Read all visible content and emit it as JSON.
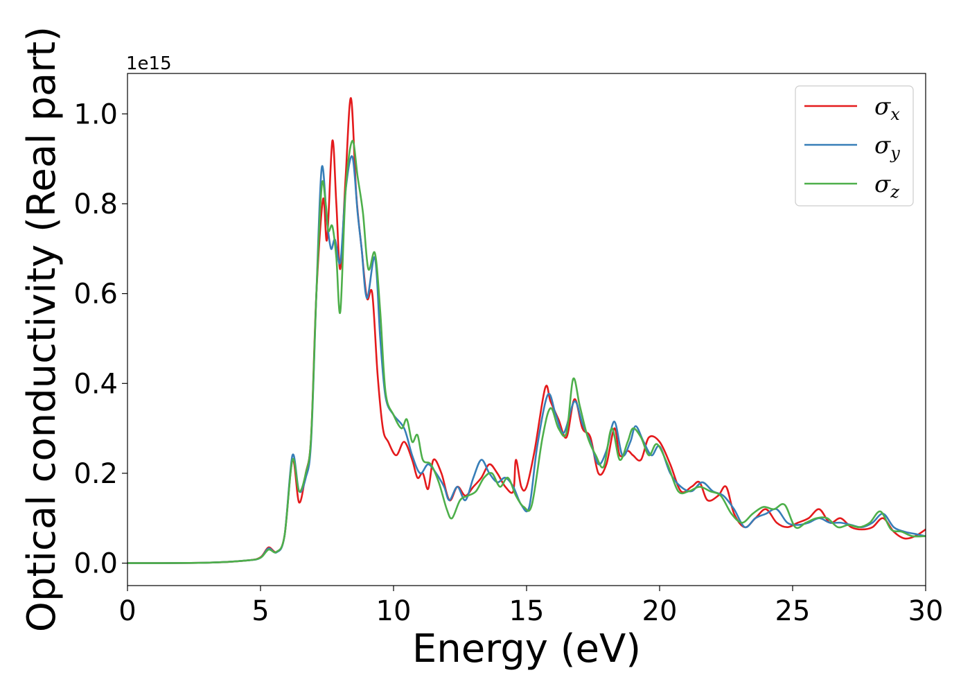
{
  "chart_data": {
    "type": "line",
    "title": "",
    "xlabel": "Energy (eV)",
    "ylabel": "Optical conductivity (Real part)",
    "y_offset_label": "1e15",
    "xlim": [
      0,
      30
    ],
    "ylim": [
      -0.05,
      1.09
    ],
    "x_ticks": [
      0,
      5,
      10,
      15,
      20,
      25,
      30
    ],
    "x_tick_labels": [
      "0",
      "5",
      "10",
      "15",
      "20",
      "25",
      "30"
    ],
    "y_ticks": [
      0.0,
      0.2,
      0.4,
      0.6,
      0.8,
      1.0
    ],
    "y_tick_labels": [
      "0.0",
      "0.2",
      "0.4",
      "0.6",
      "0.8",
      "1.0"
    ],
    "grid": false,
    "legend_position": "top-right",
    "series": [
      {
        "name": "σx",
        "symbol": "σ",
        "subscript": "x",
        "color": "#e41a1c",
        "points": [
          [
            0,
            0
          ],
          [
            3,
            0.001
          ],
          [
            4.5,
            0.006
          ],
          [
            5.0,
            0.013
          ],
          [
            5.3,
            0.035
          ],
          [
            5.6,
            0.025
          ],
          [
            5.9,
            0.06
          ],
          [
            6.2,
            0.23
          ],
          [
            6.45,
            0.135
          ],
          [
            6.7,
            0.2
          ],
          [
            6.9,
            0.28
          ],
          [
            7.1,
            0.6
          ],
          [
            7.35,
            0.81
          ],
          [
            7.5,
            0.72
          ],
          [
            7.7,
            0.94
          ],
          [
            7.85,
            0.8
          ],
          [
            8.0,
            0.655
          ],
          [
            8.2,
            0.86
          ],
          [
            8.4,
            1.035
          ],
          [
            8.6,
            0.82
          ],
          [
            8.8,
            0.7
          ],
          [
            9.0,
            0.59
          ],
          [
            9.2,
            0.6
          ],
          [
            9.4,
            0.42
          ],
          [
            9.6,
            0.3
          ],
          [
            9.8,
            0.27
          ],
          [
            10.1,
            0.24
          ],
          [
            10.4,
            0.27
          ],
          [
            10.7,
            0.23
          ],
          [
            10.9,
            0.19
          ],
          [
            11.1,
            0.2
          ],
          [
            11.3,
            0.165
          ],
          [
            11.5,
            0.23
          ],
          [
            11.8,
            0.2
          ],
          [
            12.1,
            0.14
          ],
          [
            12.4,
            0.17
          ],
          [
            12.7,
            0.15
          ],
          [
            13.0,
            0.17
          ],
          [
            13.3,
            0.19
          ],
          [
            13.6,
            0.22
          ],
          [
            13.9,
            0.2
          ],
          [
            14.2,
            0.17
          ],
          [
            14.5,
            0.16
          ],
          [
            14.6,
            0.23
          ],
          [
            14.8,
            0.17
          ],
          [
            15.0,
            0.17
          ],
          [
            15.3,
            0.25
          ],
          [
            15.7,
            0.39
          ],
          [
            15.9,
            0.36
          ],
          [
            16.2,
            0.32
          ],
          [
            16.5,
            0.28
          ],
          [
            16.8,
            0.365
          ],
          [
            17.1,
            0.3
          ],
          [
            17.4,
            0.28
          ],
          [
            17.7,
            0.2
          ],
          [
            18.0,
            0.22
          ],
          [
            18.3,
            0.3
          ],
          [
            18.5,
            0.24
          ],
          [
            18.8,
            0.25
          ],
          [
            19.0,
            0.24
          ],
          [
            19.3,
            0.23
          ],
          [
            19.6,
            0.28
          ],
          [
            20.0,
            0.27
          ],
          [
            20.4,
            0.22
          ],
          [
            20.8,
            0.16
          ],
          [
            21.2,
            0.17
          ],
          [
            21.5,
            0.18
          ],
          [
            21.8,
            0.14
          ],
          [
            22.2,
            0.15
          ],
          [
            22.5,
            0.17
          ],
          [
            22.8,
            0.11
          ],
          [
            23.2,
            0.08
          ],
          [
            23.6,
            0.1
          ],
          [
            24.0,
            0.12
          ],
          [
            24.4,
            0.09
          ],
          [
            24.8,
            0.08
          ],
          [
            25.2,
            0.09
          ],
          [
            25.6,
            0.1
          ],
          [
            26.0,
            0.12
          ],
          [
            26.4,
            0.09
          ],
          [
            26.8,
            0.1
          ],
          [
            27.2,
            0.08
          ],
          [
            27.6,
            0.075
          ],
          [
            28.0,
            0.08
          ],
          [
            28.4,
            0.1
          ],
          [
            28.8,
            0.07
          ],
          [
            29.2,
            0.055
          ],
          [
            29.6,
            0.06
          ],
          [
            30.0,
            0.075
          ]
        ]
      },
      {
        "name": "σy",
        "symbol": "σ",
        "subscript": "y",
        "color": "#377eb8",
        "points": [
          [
            0,
            0
          ],
          [
            3,
            0.001
          ],
          [
            4.5,
            0.006
          ],
          [
            5.0,
            0.012
          ],
          [
            5.3,
            0.033
          ],
          [
            5.6,
            0.024
          ],
          [
            5.9,
            0.06
          ],
          [
            6.2,
            0.24
          ],
          [
            6.45,
            0.16
          ],
          [
            6.7,
            0.19
          ],
          [
            6.9,
            0.27
          ],
          [
            7.1,
            0.6
          ],
          [
            7.3,
            0.88
          ],
          [
            7.5,
            0.76
          ],
          [
            7.65,
            0.7
          ],
          [
            7.8,
            0.72
          ],
          [
            8.0,
            0.67
          ],
          [
            8.2,
            0.83
          ],
          [
            8.45,
            0.905
          ],
          [
            8.65,
            0.78
          ],
          [
            8.8,
            0.7
          ],
          [
            9.0,
            0.59
          ],
          [
            9.3,
            0.68
          ],
          [
            9.5,
            0.5
          ],
          [
            9.7,
            0.37
          ],
          [
            10.0,
            0.33
          ],
          [
            10.4,
            0.3
          ],
          [
            10.7,
            0.24
          ],
          [
            11.0,
            0.2
          ],
          [
            11.3,
            0.22
          ],
          [
            11.6,
            0.2
          ],
          [
            11.9,
            0.17
          ],
          [
            12.1,
            0.14
          ],
          [
            12.4,
            0.17
          ],
          [
            12.7,
            0.14
          ],
          [
            13.0,
            0.19
          ],
          [
            13.3,
            0.23
          ],
          [
            13.6,
            0.2
          ],
          [
            13.9,
            0.18
          ],
          [
            14.2,
            0.19
          ],
          [
            14.5,
            0.17
          ],
          [
            14.8,
            0.13
          ],
          [
            15.1,
            0.125
          ],
          [
            15.4,
            0.26
          ],
          [
            15.8,
            0.375
          ],
          [
            16.1,
            0.33
          ],
          [
            16.4,
            0.29
          ],
          [
            16.8,
            0.36
          ],
          [
            17.1,
            0.31
          ],
          [
            17.4,
            0.27
          ],
          [
            17.7,
            0.22
          ],
          [
            18.0,
            0.25
          ],
          [
            18.3,
            0.315
          ],
          [
            18.6,
            0.24
          ],
          [
            18.9,
            0.27
          ],
          [
            19.1,
            0.305
          ],
          [
            19.4,
            0.27
          ],
          [
            19.7,
            0.24
          ],
          [
            20.0,
            0.26
          ],
          [
            20.4,
            0.2
          ],
          [
            20.8,
            0.17
          ],
          [
            21.2,
            0.16
          ],
          [
            21.6,
            0.18
          ],
          [
            22.0,
            0.16
          ],
          [
            22.4,
            0.15
          ],
          [
            22.8,
            0.12
          ],
          [
            23.2,
            0.08
          ],
          [
            23.6,
            0.1
          ],
          [
            24.0,
            0.11
          ],
          [
            24.4,
            0.12
          ],
          [
            24.8,
            0.09
          ],
          [
            25.2,
            0.085
          ],
          [
            25.6,
            0.09
          ],
          [
            26.0,
            0.1
          ],
          [
            26.4,
            0.09
          ],
          [
            26.8,
            0.09
          ],
          [
            27.2,
            0.085
          ],
          [
            27.6,
            0.08
          ],
          [
            28.0,
            0.09
          ],
          [
            28.4,
            0.11
          ],
          [
            28.8,
            0.08
          ],
          [
            29.2,
            0.07
          ],
          [
            29.6,
            0.065
          ],
          [
            30.0,
            0.06
          ]
        ]
      },
      {
        "name": "σz",
        "symbol": "σ",
        "subscript": "z",
        "color": "#4daf4a",
        "points": [
          [
            0,
            0
          ],
          [
            3,
            0.001
          ],
          [
            4.5,
            0.006
          ],
          [
            5.0,
            0.012
          ],
          [
            5.3,
            0.03
          ],
          [
            5.6,
            0.025
          ],
          [
            5.9,
            0.06
          ],
          [
            6.2,
            0.23
          ],
          [
            6.45,
            0.16
          ],
          [
            6.7,
            0.2
          ],
          [
            6.9,
            0.28
          ],
          [
            7.1,
            0.6
          ],
          [
            7.3,
            0.84
          ],
          [
            7.45,
            0.8
          ],
          [
            7.55,
            0.74
          ],
          [
            7.7,
            0.75
          ],
          [
            7.85,
            0.68
          ],
          [
            8.0,
            0.56
          ],
          [
            8.2,
            0.83
          ],
          [
            8.45,
            0.94
          ],
          [
            8.65,
            0.86
          ],
          [
            8.85,
            0.78
          ],
          [
            9.05,
            0.655
          ],
          [
            9.3,
            0.69
          ],
          [
            9.5,
            0.56
          ],
          [
            9.7,
            0.38
          ],
          [
            10.0,
            0.33
          ],
          [
            10.3,
            0.3
          ],
          [
            10.5,
            0.32
          ],
          [
            10.7,
            0.27
          ],
          [
            10.9,
            0.285
          ],
          [
            11.1,
            0.23
          ],
          [
            11.4,
            0.22
          ],
          [
            11.7,
            0.18
          ],
          [
            12.0,
            0.12
          ],
          [
            12.2,
            0.1
          ],
          [
            12.5,
            0.14
          ],
          [
            12.8,
            0.15
          ],
          [
            13.1,
            0.16
          ],
          [
            13.4,
            0.19
          ],
          [
            13.7,
            0.2
          ],
          [
            14.0,
            0.17
          ],
          [
            14.3,
            0.19
          ],
          [
            14.6,
            0.15
          ],
          [
            14.9,
            0.125
          ],
          [
            15.2,
            0.13
          ],
          [
            15.6,
            0.28
          ],
          [
            15.9,
            0.345
          ],
          [
            16.2,
            0.3
          ],
          [
            16.5,
            0.29
          ],
          [
            16.75,
            0.41
          ],
          [
            17.0,
            0.35
          ],
          [
            17.3,
            0.28
          ],
          [
            17.6,
            0.24
          ],
          [
            17.9,
            0.215
          ],
          [
            18.2,
            0.3
          ],
          [
            18.5,
            0.23
          ],
          [
            18.8,
            0.27
          ],
          [
            19.0,
            0.3
          ],
          [
            19.3,
            0.28
          ],
          [
            19.6,
            0.24
          ],
          [
            19.9,
            0.265
          ],
          [
            20.3,
            0.22
          ],
          [
            20.7,
            0.16
          ],
          [
            21.1,
            0.16
          ],
          [
            21.5,
            0.17
          ],
          [
            21.9,
            0.16
          ],
          [
            22.3,
            0.15
          ],
          [
            22.7,
            0.11
          ],
          [
            23.1,
            0.09
          ],
          [
            23.5,
            0.11
          ],
          [
            23.9,
            0.125
          ],
          [
            24.3,
            0.12
          ],
          [
            24.7,
            0.13
          ],
          [
            25.1,
            0.08
          ],
          [
            25.5,
            0.09
          ],
          [
            25.9,
            0.1
          ],
          [
            26.3,
            0.1
          ],
          [
            26.7,
            0.08
          ],
          [
            27.1,
            0.085
          ],
          [
            27.5,
            0.08
          ],
          [
            27.9,
            0.09
          ],
          [
            28.3,
            0.115
          ],
          [
            28.7,
            0.075
          ],
          [
            29.1,
            0.07
          ],
          [
            29.5,
            0.06
          ],
          [
            30.0,
            0.06
          ]
        ]
      }
    ]
  }
}
